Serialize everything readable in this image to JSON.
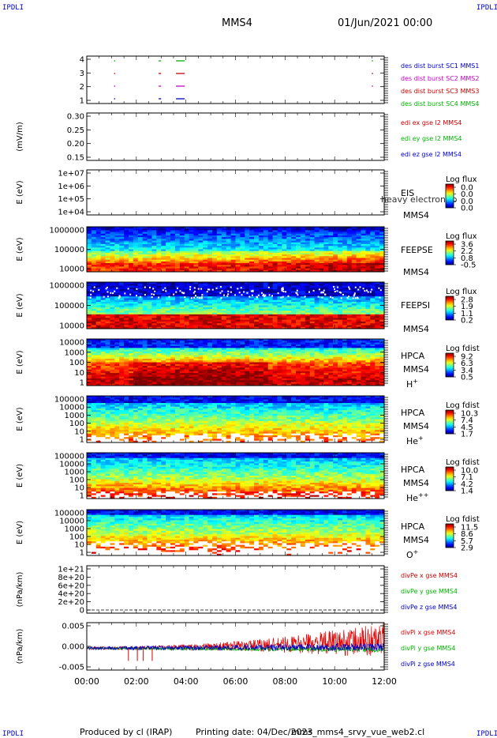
{
  "header": {
    "corner_tl": "IPDLI",
    "corner_tr": "IPDLI",
    "corner_bl": "IPDLI",
    "corner_br": "IPDLI",
    "title": "MMS4",
    "datetime": "01/Jun/2021 00:00"
  },
  "footer": {
    "produced": "Produced by cl (IRAP)",
    "printing": "Printing date: 04/Dec/2023",
    "script": "mms_mms4_srvy_vue_web2.cl"
  },
  "chart_data": {
    "type": "multi-panel time series",
    "x_ticks": [
      "00:00",
      "02:00",
      "04:00",
      "06:00",
      "08:00",
      "10:00",
      "12:00"
    ],
    "xlim_hours": [
      0,
      12
    ],
    "panels": [
      {
        "id": "burst",
        "type": "scatter",
        "ylabel": "",
        "yticks": [
          "4",
          "3",
          "2",
          "1"
        ],
        "legend": [
          {
            "label": "des dist burst SC1 MMS1",
            "color": "#0000c8"
          },
          {
            "label": "des dist burst SC2 MMS2",
            "color": "#c800c8"
          },
          {
            "label": "des dist burst SC3 MMS3",
            "color": "#c80000"
          },
          {
            "label": "des dist burst SC4 MMS4",
            "color": "#00b400"
          }
        ],
        "segments_hours": [
          {
            "row": 4,
            "x": [
              2.9,
              3.0
            ],
            "color": "#00b400"
          },
          {
            "row": 4,
            "x": [
              3.6,
              3.95
            ],
            "color": "#00b400"
          },
          {
            "row": 4,
            "x": [
              11.5,
              11.55
            ],
            "color": "#00b400"
          },
          {
            "row": 4,
            "x": [
              1.1,
              1.12
            ],
            "color": "#00b400"
          },
          {
            "row": 3,
            "x": [
              1.1,
              1.12
            ],
            "color": "#c80000"
          },
          {
            "row": 3,
            "x": [
              2.9,
              3.0
            ],
            "color": "#c80000"
          },
          {
            "row": 3,
            "x": [
              3.6,
              3.95
            ],
            "color": "#c80000"
          },
          {
            "row": 3,
            "x": [
              11.5,
              11.55
            ],
            "color": "#c80000"
          },
          {
            "row": 2,
            "x": [
              1.1,
              1.12
            ],
            "color": "#c800c8"
          },
          {
            "row": 2,
            "x": [
              2.9,
              3.0
            ],
            "color": "#c800c8"
          },
          {
            "row": 2,
            "x": [
              3.6,
              3.95
            ],
            "color": "#c800c8"
          },
          {
            "row": 2,
            "x": [
              11.5,
              11.55
            ],
            "color": "#c800c8"
          },
          {
            "row": 1,
            "x": [
              1.1,
              1.12
            ],
            "color": "#0000c8"
          },
          {
            "row": 1,
            "x": [
              2.9,
              3.0
            ],
            "color": "#0000c8"
          },
          {
            "row": 1,
            "x": [
              3.6,
              3.95
            ],
            "color": "#0000c8"
          }
        ]
      },
      {
        "id": "edi",
        "type": "line",
        "ylabel": "(mV/m)",
        "yticks": [
          "0.30",
          "0.25",
          "0.20",
          "0.15"
        ],
        "legend": [
          {
            "label": "edi ex gse l2 MMS4",
            "color": "#c80000"
          },
          {
            "label": "edi ey gse l2 MMS4",
            "color": "#00b400"
          },
          {
            "label": "edi ez gse l2 MMS4",
            "color": "#0000c8"
          }
        ]
      },
      {
        "id": "eis",
        "type": "heatmap",
        "ylabel": "E (eV)",
        "yticks": [
          "1e+07",
          "1e+06",
          "1e+05",
          "1e+04"
        ],
        "side": [
          "EIS",
          "MMS4"
        ],
        "overlay": "heavy electron to",
        "cbar_title": "Log flux",
        "cbar_ticks": [
          "0.0",
          "0.0",
          "0.0",
          "0.0"
        ]
      },
      {
        "id": "feepse",
        "type": "heatmap",
        "ylabel": "E (eV)",
        "yticks": [
          "1000000",
          "100000",
          "10000"
        ],
        "side": [
          "FEEPSE",
          "MMS4"
        ],
        "cbar_title": "Log flux",
        "cbar_ticks": [
          "3.6",
          "2.2",
          "0.8",
          "-0.5"
        ]
      },
      {
        "id": "feepsi",
        "type": "heatmap",
        "ylabel": "E (eV)",
        "yticks": [
          "1000000",
          "100000",
          "10000"
        ],
        "side": [
          "FEEPSI",
          "MMS4"
        ],
        "cbar_title": "Log flux",
        "cbar_ticks": [
          "2.8",
          "1.9",
          "1.1",
          "0.2"
        ]
      },
      {
        "id": "hpca_h",
        "type": "heatmap",
        "ylabel": "E (eV)",
        "yticks": [
          "10000",
          "1000",
          "100",
          "10",
          "1"
        ],
        "side": [
          "HPCA",
          "MMS4"
        ],
        "species": "H",
        "species_sup": "+",
        "cbar_title": "Log fdist",
        "cbar_ticks": [
          "9.2",
          "6.3",
          "3.4",
          "0.5"
        ]
      },
      {
        "id": "hpca_he",
        "type": "heatmap",
        "ylabel": "E (eV)",
        "yticks": [
          "100000",
          "10000",
          "1000",
          "100",
          "10",
          "1"
        ],
        "side": [
          "HPCA",
          "MMS4"
        ],
        "species": "He",
        "species_sup": "+",
        "cbar_title": "Log fdist",
        "cbar_ticks": [
          "10.3",
          "7.4",
          "4.5",
          "1.7"
        ]
      },
      {
        "id": "hpca_hepp",
        "type": "heatmap",
        "ylabel": "E (eV)",
        "yticks": [
          "100000",
          "10000",
          "1000",
          "100",
          "10",
          "1"
        ],
        "side": [
          "HPCA",
          "MMS4"
        ],
        "species": "He",
        "species_sup": "++",
        "cbar_title": "Log fdist",
        "cbar_ticks": [
          "10.0",
          "7.1",
          "4.2",
          "1.4"
        ]
      },
      {
        "id": "hpca_o",
        "type": "heatmap",
        "ylabel": "E (eV)",
        "yticks": [
          "100000",
          "10000",
          "1000",
          "100",
          "10",
          "1"
        ],
        "side": [
          "HPCA",
          "MMS4"
        ],
        "species": "O",
        "species_sup": "+",
        "cbar_title": "Log fdist",
        "cbar_ticks": [
          "11.5",
          "8.6",
          "5.7",
          "2.9"
        ]
      },
      {
        "id": "divpe",
        "type": "line",
        "ylabel": "(nPa/km)",
        "yticks": [
          "1e+21",
          "8e+20",
          "6e+20",
          "4e+20",
          "2e+20",
          "0"
        ],
        "legend": [
          {
            "label": "divPe x gse MMS4",
            "color": "#c80000"
          },
          {
            "label": "divPe y gse MMS4",
            "color": "#00b400"
          },
          {
            "label": "divPe z gse MMS4",
            "color": "#0000c8"
          }
        ]
      },
      {
        "id": "divpi",
        "type": "line",
        "ylabel": "(nPa/km)",
        "yticks": [
          "0.005",
          "0.000",
          "-0.005"
        ],
        "ylim": [
          -0.006,
          0.007
        ],
        "legend": [
          {
            "label": "divPi x gse MMS4",
            "color": "#e00000"
          },
          {
            "label": "divPi y gse MMS4",
            "color": "#00b400"
          },
          {
            "label": "divPi z gse MMS4",
            "color": "#0000c8"
          }
        ]
      }
    ]
  }
}
